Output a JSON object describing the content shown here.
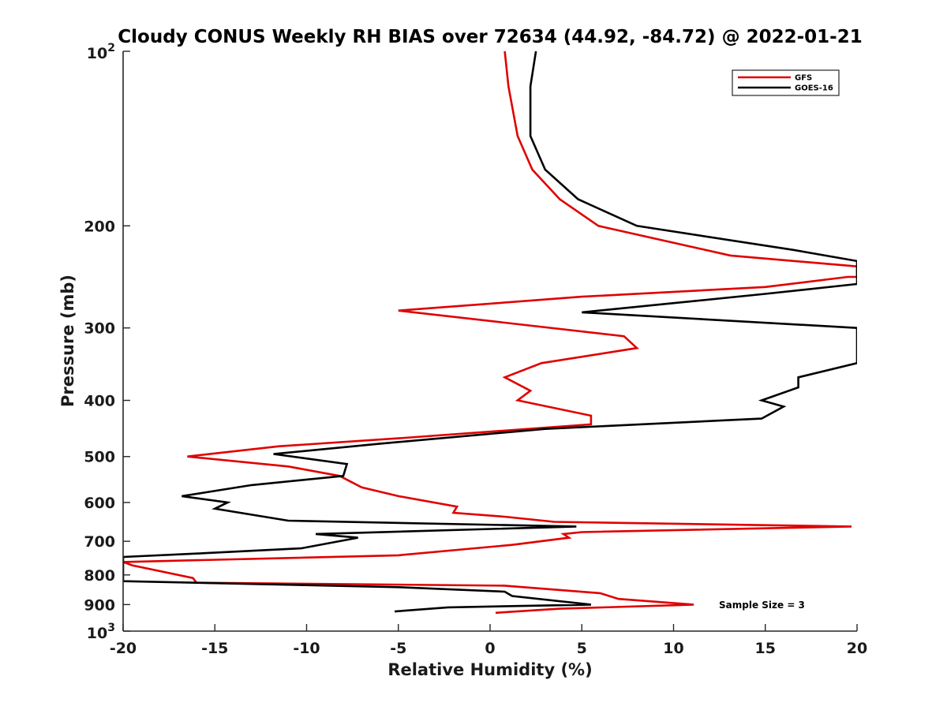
{
  "chart_data": {
    "type": "line",
    "title": "Cloudy CONUS Weekly RH BIAS over 72634 (44.92, -84.72) @ 2022-01-21",
    "xlabel": "Relative Humidity (%)",
    "ylabel": "Pressure (mb)",
    "xlim": [
      -20,
      20
    ],
    "ylim": [
      1000,
      100
    ],
    "yscale": "log",
    "y_reversed": true,
    "grid": false,
    "legend_position": "top-right",
    "annotation": "Sample Size = 3",
    "x_ticks": [
      "-20",
      "-15",
      "-10",
      "-5",
      "0",
      "5",
      "10",
      "15",
      "20"
    ],
    "x_tick_values": [
      -20,
      -15,
      -10,
      -5,
      0,
      5,
      10,
      15,
      20
    ],
    "y_ticks": [
      {
        "value": 200,
        "label": "200"
      },
      {
        "value": 300,
        "label": "300"
      },
      {
        "value": 400,
        "label": "400"
      },
      {
        "value": 500,
        "label": "500"
      },
      {
        "value": 600,
        "label": "600"
      },
      {
        "value": 700,
        "label": "700"
      },
      {
        "value": 800,
        "label": "800"
      },
      {
        "value": 900,
        "label": "900"
      }
    ],
    "y_edge_labels": [
      {
        "value": 100,
        "base": "10",
        "exp": "2"
      },
      {
        "value": 1000,
        "base": "10",
        "exp": "3"
      }
    ],
    "series": [
      {
        "name": "GFS",
        "color": "#e00000",
        "points": [
          [
            0.8,
            100
          ],
          [
            1.0,
            115
          ],
          [
            1.5,
            140
          ],
          [
            2.3,
            160
          ],
          [
            3.8,
            180
          ],
          [
            5.9,
            200
          ],
          [
            13.1,
            225
          ],
          [
            20.0,
            235
          ],
          [
            20.0,
            245
          ],
          [
            19.5,
            245
          ],
          [
            15.0,
            255
          ],
          [
            5.0,
            265
          ],
          [
            -5.0,
            280
          ],
          [
            7.3,
            310
          ],
          [
            8.0,
            325
          ],
          [
            2.8,
            345
          ],
          [
            0.8,
            365
          ],
          [
            2.2,
            385
          ],
          [
            1.5,
            400
          ],
          [
            5.5,
            425
          ],
          [
            5.5,
            440
          ],
          [
            -5.0,
            465
          ],
          [
            -11.5,
            480
          ],
          [
            -16.5,
            500
          ],
          [
            -11.0,
            520
          ],
          [
            -8.2,
            540
          ],
          [
            -7.0,
            565
          ],
          [
            -5.0,
            585
          ],
          [
            -1.8,
            610
          ],
          [
            -2.0,
            625
          ],
          [
            0.8,
            635
          ],
          [
            3.5,
            648
          ],
          [
            19.7,
            660
          ],
          [
            5.0,
            675
          ],
          [
            4.0,
            680
          ],
          [
            4.3,
            690
          ],
          [
            1.2,
            710
          ],
          [
            -5.0,
            740
          ],
          [
            -20.0,
            760
          ],
          [
            -19.5,
            770
          ],
          [
            -16.2,
            810
          ],
          [
            -16.0,
            825
          ],
          [
            0.8,
            835
          ],
          [
            6.0,
            860
          ],
          [
            7.0,
            880
          ],
          [
            11.1,
            900
          ],
          [
            3.8,
            915
          ],
          [
            0.3,
            930
          ]
        ]
      },
      {
        "name": "GOES-16",
        "color": "#000000",
        "points": [
          [
            2.5,
            100
          ],
          [
            2.2,
            115
          ],
          [
            2.2,
            140
          ],
          [
            3.0,
            160
          ],
          [
            4.8,
            180
          ],
          [
            8.0,
            200
          ],
          [
            16.5,
            220
          ],
          [
            20.0,
            230
          ],
          [
            20.0,
            240
          ],
          [
            20.0,
            252
          ],
          [
            15.0,
            262
          ],
          [
            5.0,
            282
          ],
          [
            20.0,
            300
          ],
          [
            20.0,
            345
          ],
          [
            16.8,
            365
          ],
          [
            16.8,
            380
          ],
          [
            14.8,
            400
          ],
          [
            16.0,
            410
          ],
          [
            14.8,
            430
          ],
          [
            3.0,
            448
          ],
          [
            -6.0,
            475
          ],
          [
            -11.8,
            495
          ],
          [
            -7.8,
            515
          ],
          [
            -8.0,
            540
          ],
          [
            -13.0,
            560
          ],
          [
            -16.8,
            585
          ],
          [
            -14.3,
            600
          ],
          [
            -15.0,
            615
          ],
          [
            -11.0,
            645
          ],
          [
            4.7,
            660
          ],
          [
            -9.5,
            680
          ],
          [
            -7.2,
            690
          ],
          [
            -10.3,
            720
          ],
          [
            -16.0,
            735
          ],
          [
            -20.0,
            745
          ],
          [
            -20.0,
            820
          ],
          [
            -5.0,
            840
          ],
          [
            0.8,
            855
          ],
          [
            1.2,
            870
          ],
          [
            5.5,
            900
          ],
          [
            -2.3,
            910
          ],
          [
            -5.2,
            925
          ]
        ]
      }
    ]
  }
}
